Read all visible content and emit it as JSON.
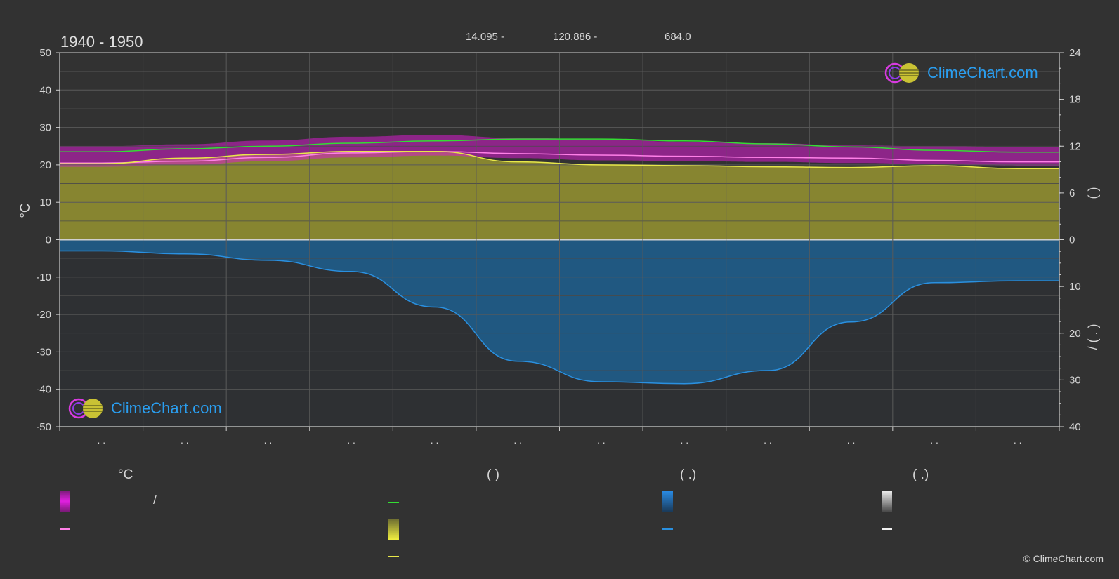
{
  "header": {
    "title": "1940 - 1950",
    "latitude": "14.095 -",
    "longitude": "120.886 -",
    "elevation": "684.0"
  },
  "brand": {
    "logo_text": "ClimeChart.com",
    "copyright": "© ClimeChart.com"
  },
  "colors": {
    "background": "#323232",
    "temp_band": "#d81bd0",
    "daily_temp_line": "#ff80e8",
    "max_temp_line": "#33dd33",
    "sunshine_fill": "#8c8a30",
    "sunshine_line": "#e8e84a",
    "rain_fill": "#1f5d8a",
    "rain_line": "#2a90e0",
    "grid": "#5a5a5a"
  },
  "legend": {
    "col1_header": "°C",
    "col1_slash": "/",
    "col2_header": "(          )",
    "col3_header": "(    .)",
    "col4_header": "(    .)"
  },
  "chart_data": {
    "type": "area",
    "title": "1940 - 1950",
    "months": 12,
    "x_tick_labels": [
      ". .",
      ". .",
      ". .",
      ". .",
      ". .",
      ". .",
      ". .",
      ". .",
      ". .",
      ". .",
      ". .",
      ". ."
    ],
    "left_axis": {
      "label": "°C",
      "ylim": [
        -50,
        50
      ],
      "ticks": [
        50,
        40,
        30,
        20,
        10,
        0,
        -10,
        -20,
        -30,
        -40,
        -50
      ]
    },
    "right_axis_top": {
      "ylim": [
        0,
        24
      ],
      "ticks": [
        24,
        18,
        12,
        6,
        0
      ],
      "label": "(    )"
    },
    "right_axis_bottom": {
      "ylim": [
        0,
        40
      ],
      "ticks": [
        0,
        10,
        20,
        30,
        40
      ],
      "label": "/ (  .  )"
    },
    "grid": true,
    "series": [
      {
        "key": "max_temp",
        "axis": "left",
        "values": [
          23.5,
          24.3,
          25.0,
          25.8,
          26.4,
          26.9,
          26.9,
          26.4,
          25.6,
          24.8,
          23.9,
          23.4
        ]
      },
      {
        "key": "mean_temp",
        "axis": "left",
        "values": [
          20.5,
          21.0,
          22.0,
          23.2,
          23.6,
          23.0,
          22.6,
          22.3,
          22.0,
          21.8,
          21.2,
          20.8
        ]
      },
      {
        "key": "sunshine",
        "axis": "left",
        "values": [
          20.3,
          21.8,
          22.8,
          23.6,
          23.6,
          20.8,
          20.0,
          19.8,
          19.5,
          19.3,
          19.8,
          19.0
        ]
      },
      {
        "key": "temp_band_high",
        "axis": "left",
        "values": [
          25.0,
          25.5,
          26.5,
          27.5,
          28.0,
          27.2,
          26.8,
          26.2,
          25.8,
          25.2,
          25.0,
          24.8
        ]
      },
      {
        "key": "temp_band_low",
        "axis": "left",
        "values": [
          19.5,
          20.0,
          21.0,
          22.0,
          22.5,
          21.8,
          21.2,
          21.0,
          20.8,
          20.5,
          20.2,
          19.8
        ]
      },
      {
        "key": "precipitation",
        "axis": "left",
        "values": [
          -3.0,
          -3.8,
          -5.5,
          -8.5,
          -18.0,
          -32.5,
          -38.0,
          -38.5,
          -35.0,
          -22.0,
          -11.5,
          -11.0
        ]
      }
    ]
  }
}
